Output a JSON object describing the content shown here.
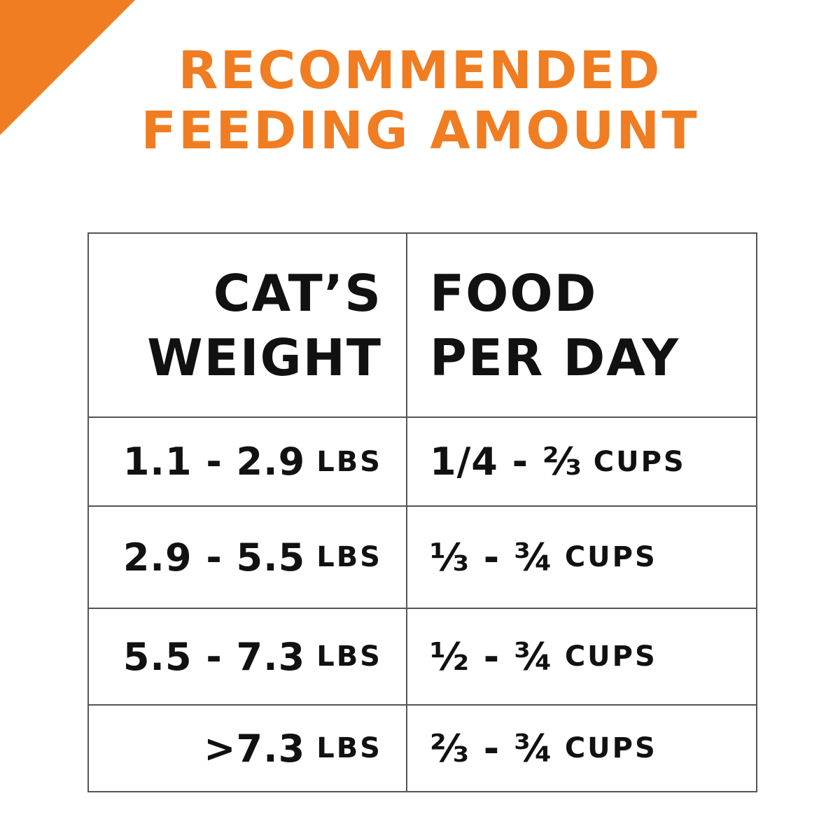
{
  "header": {
    "title_line1": "RECOMMENDED",
    "title_line2": "FEEDING AMOUNT",
    "accent_color": "#f07d22"
  },
  "table": {
    "columns": [
      {
        "line1": "CAT’S",
        "line2": "WEIGHT"
      },
      {
        "line1": "FOOD",
        "line2": "PER DAY"
      }
    ],
    "rows": [
      {
        "weight": "1.1 - 2.9",
        "weight_unit": "LBS",
        "food": "1/4 - ⅔",
        "food_unit": "CUPS"
      },
      {
        "weight": "2.9 - 5.5",
        "weight_unit": "LBS",
        "food": "⅓ - ¾",
        "food_unit": "CUPS"
      },
      {
        "weight": "5.5 - 7.3",
        "weight_unit": "LBS",
        "food": "½ - ¾",
        "food_unit": "CUPS"
      },
      {
        "weight": ">7.3",
        "weight_unit": "LBS",
        "food": "⅔ - ¾",
        "food_unit": "CUPS"
      }
    ]
  }
}
